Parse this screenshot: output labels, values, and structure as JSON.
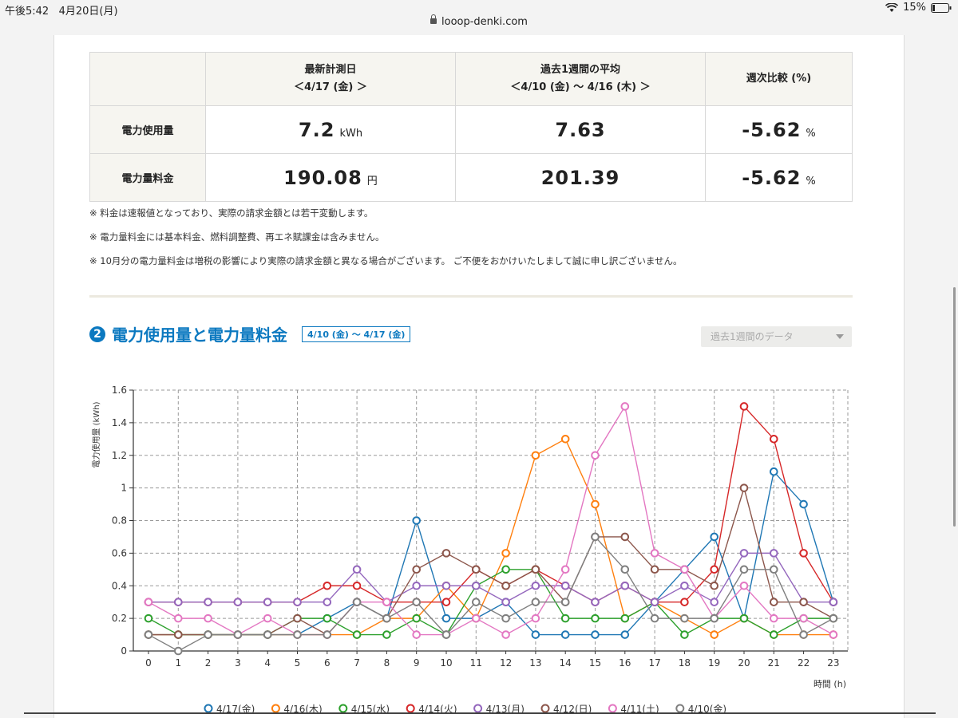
{
  "status": {
    "time": "午後5:42",
    "date": "4月20日(月)",
    "battery": "15%"
  },
  "url": "looop-denki.com",
  "summary": {
    "col1_title": "最新計測日",
    "col1_sub": "＜4/17 (金) ＞",
    "col2_title": "過去1週間の平均",
    "col2_sub": "＜4/10 (金) 〜 4/16 (木) ＞",
    "col3_title": "週次比較 (%)",
    "rows": [
      {
        "label": "電力使用量",
        "latest": "7.2",
        "latest_unit": "kWh",
        "avg": "7.63",
        "avg_unit": "",
        "compare": "-5.62",
        "compare_unit": "%"
      },
      {
        "label": "電力量料金",
        "latest": "190.08",
        "latest_unit": "円",
        "avg": "201.39",
        "avg_unit": "",
        "compare": "-5.62",
        "compare_unit": "%"
      }
    ]
  },
  "notes": [
    "※ 料金は速報値となっており、実際の請求金額とは若干変動します。",
    "※ 電力量料金には基本料金、燃料調整費、再エネ賦課金は含みません。",
    "※ 10月分の電力量料金は増税の影響により実際の請求金額と異なる場合がございます。 ご不便をおかけいたしまして誠に申し訳ございません。"
  ],
  "section": {
    "number": "2",
    "title": "電力使用量と電力量料金",
    "range": "4/10 (金) 〜 4/17 (金)"
  },
  "period_select": {
    "selected": "過去1週間のデータ"
  },
  "chart_data": {
    "type": "line",
    "ylabel": "電力使用量 (kWh)",
    "xlabel": "時間 (h)",
    "ylim": [
      0,
      1.6
    ],
    "y_ticks": [
      "0",
      "0.2",
      "0.4",
      "0.6",
      "0.8",
      "1",
      "1.2",
      "1.4",
      "1.6"
    ],
    "categories": [
      "0",
      "1",
      "2",
      "3",
      "4",
      "5",
      "6",
      "7",
      "8",
      "9",
      "10",
      "11",
      "12",
      "13",
      "14",
      "15",
      "16",
      "17",
      "18",
      "19",
      "20",
      "21",
      "22",
      "23"
    ],
    "grid": true,
    "legend_position": "bottom",
    "series": [
      {
        "name": "4/17(金)",
        "color": "#1f77b4",
        "values": [
          0.1,
          0.1,
          0.1,
          0.1,
          0.1,
          0.1,
          0.2,
          0.3,
          0.2,
          0.8,
          0.2,
          0.2,
          0.3,
          0.1,
          0.1,
          0.1,
          0.1,
          0.3,
          0.5,
          0.7,
          0.2,
          1.1,
          0.9,
          0.3
        ]
      },
      {
        "name": "4/16(木)",
        "color": "#ff7f0e",
        "values": [
          0.1,
          0.1,
          0.1,
          0.1,
          0.1,
          0.1,
          0.1,
          0.1,
          0.2,
          0.2,
          0.4,
          0.2,
          0.6,
          1.2,
          1.3,
          0.9,
          0.2,
          0.3,
          0.2,
          0.1,
          0.2,
          0.1,
          0.1,
          0.1
        ]
      },
      {
        "name": "4/15(水)",
        "color": "#2ca02c",
        "values": [
          0.2,
          0.1,
          0.1,
          0.1,
          0.1,
          0.2,
          0.2,
          0.1,
          0.1,
          0.2,
          0.1,
          0.4,
          0.5,
          0.5,
          0.2,
          0.2,
          0.2,
          0.3,
          0.1,
          0.2,
          0.2,
          0.1,
          0.2,
          0.2
        ]
      },
      {
        "name": "4/14(火)",
        "color": "#d62728",
        "values": [
          0.3,
          0.3,
          0.3,
          0.3,
          0.3,
          0.3,
          0.4,
          0.4,
          0.3,
          0.3,
          0.3,
          0.5,
          0.4,
          0.5,
          0.4,
          0.3,
          0.4,
          0.3,
          0.3,
          0.5,
          1.5,
          1.3,
          0.6,
          0.3
        ]
      },
      {
        "name": "4/13(月)",
        "color": "#9467bd",
        "values": [
          0.3,
          0.3,
          0.3,
          0.3,
          0.3,
          0.3,
          0.3,
          0.5,
          0.3,
          0.4,
          0.4,
          0.4,
          0.3,
          0.4,
          0.4,
          0.3,
          0.4,
          0.3,
          0.4,
          0.3,
          0.6,
          0.6,
          0.3,
          0.3
        ]
      },
      {
        "name": "4/12(日)",
        "color": "#8c564b",
        "values": [
          0.1,
          0.1,
          0.1,
          0.1,
          0.1,
          0.2,
          0.1,
          0.3,
          0.2,
          0.5,
          0.6,
          0.5,
          0.4,
          0.5,
          0.3,
          0.7,
          0.7,
          0.5,
          0.5,
          0.4,
          1.0,
          0.3,
          0.3,
          0.2
        ]
      },
      {
        "name": "4/11(土)",
        "color": "#e377c2",
        "values": [
          0.3,
          0.2,
          0.2,
          0.1,
          0.2,
          0.1,
          0.1,
          0.3,
          0.3,
          0.1,
          0.1,
          0.2,
          0.1,
          0.2,
          0.5,
          1.2,
          1.5,
          0.6,
          0.5,
          0.2,
          0.4,
          0.2,
          0.2,
          0.1
        ]
      },
      {
        "name": "4/10(金)",
        "color": "#7f7f7f",
        "values": [
          0.1,
          0.0,
          0.1,
          0.1,
          0.1,
          0.1,
          0.1,
          0.3,
          0.2,
          0.3,
          0.1,
          0.3,
          0.2,
          0.3,
          0.3,
          0.7,
          0.5,
          0.2,
          0.2,
          0.2,
          0.5,
          0.5,
          0.1,
          0.2
        ]
      }
    ]
  }
}
